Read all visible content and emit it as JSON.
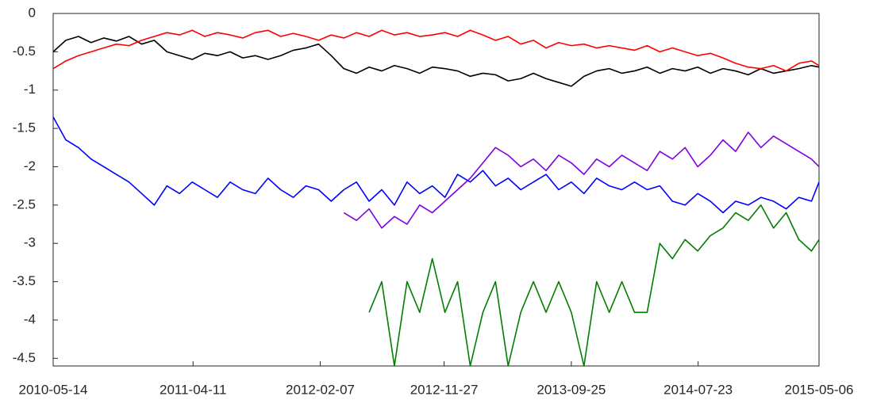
{
  "chart_data": {
    "type": "line",
    "x": [
      "2010-05-14",
      "2010-06-13",
      "2010-07-13",
      "2010-08-12",
      "2010-09-11",
      "2010-10-11",
      "2010-11-10",
      "2010-12-10",
      "2011-01-09",
      "2011-02-08",
      "2011-03-10",
      "2011-04-09",
      "2011-05-09",
      "2011-06-08",
      "2011-07-08",
      "2011-08-07",
      "2011-09-06",
      "2011-10-06",
      "2011-11-05",
      "2011-12-05",
      "2012-01-04",
      "2012-02-03",
      "2012-03-04",
      "2012-04-03",
      "2012-05-03",
      "2012-06-02",
      "2012-07-02",
      "2012-08-01",
      "2012-08-31",
      "2012-09-30",
      "2012-10-30",
      "2012-11-29",
      "2012-12-29",
      "2013-01-28",
      "2013-02-27",
      "2013-03-29",
      "2013-04-28",
      "2013-05-28",
      "2013-06-27",
      "2013-07-27",
      "2013-08-26",
      "2013-09-25",
      "2013-10-25",
      "2013-11-24",
      "2013-12-24",
      "2014-01-23",
      "2014-02-22",
      "2014-03-24",
      "2014-04-23",
      "2014-05-23",
      "2014-06-22",
      "2014-07-22",
      "2014-08-21",
      "2014-09-20",
      "2014-10-20",
      "2014-11-19",
      "2014-12-19",
      "2015-01-18",
      "2015-02-17",
      "2015-03-19",
      "2015-04-18",
      "2015-05-06"
    ],
    "series": [
      {
        "color": "#000000",
        "values": [
          -0.5,
          -0.35,
          -0.3,
          -0.38,
          -0.32,
          -0.36,
          -0.3,
          -0.4,
          -0.35,
          -0.5,
          -0.55,
          -0.6,
          -0.52,
          -0.55,
          -0.5,
          -0.58,
          -0.55,
          -0.6,
          -0.55,
          -0.48,
          -0.45,
          -0.4,
          -0.55,
          -0.72,
          -0.78,
          -0.7,
          -0.75,
          -0.68,
          -0.72,
          -0.78,
          -0.7,
          -0.72,
          -0.75,
          -0.82,
          -0.78,
          -0.8,
          -0.88,
          -0.85,
          -0.78,
          -0.85,
          -0.9,
          -0.95,
          -0.82,
          -0.75,
          -0.72,
          -0.78,
          -0.75,
          -0.7,
          -0.78,
          -0.72,
          -0.75,
          -0.7,
          -0.78,
          -0.72,
          -0.75,
          -0.8,
          -0.72,
          -0.78,
          -0.75,
          -0.72,
          -0.68,
          -0.7
        ]
      },
      {
        "color": "#ff0000",
        "values": [
          -0.72,
          -0.62,
          -0.55,
          -0.5,
          -0.45,
          -0.4,
          -0.42,
          -0.35,
          -0.3,
          -0.25,
          -0.28,
          -0.22,
          -0.3,
          -0.25,
          -0.28,
          -0.32,
          -0.25,
          -0.22,
          -0.3,
          -0.26,
          -0.3,
          -0.35,
          -0.28,
          -0.32,
          -0.25,
          -0.3,
          -0.22,
          -0.28,
          -0.25,
          -0.3,
          -0.28,
          -0.25,
          -0.3,
          -0.22,
          -0.28,
          -0.35,
          -0.3,
          -0.4,
          -0.35,
          -0.45,
          -0.38,
          -0.42,
          -0.4,
          -0.45,
          -0.42,
          -0.45,
          -0.48,
          -0.42,
          -0.5,
          -0.45,
          -0.5,
          -0.55,
          -0.52,
          -0.58,
          -0.65,
          -0.7,
          -0.72,
          -0.68,
          -0.75,
          -0.65,
          -0.62,
          -0.68
        ]
      },
      {
        "color": "#0000ff",
        "values": [
          -1.35,
          -1.65,
          -1.75,
          -1.9,
          -2.0,
          -2.1,
          -2.2,
          -2.35,
          -2.5,
          -2.25,
          -2.35,
          -2.2,
          -2.3,
          -2.4,
          -2.2,
          -2.3,
          -2.35,
          -2.15,
          -2.3,
          -2.4,
          -2.25,
          -2.3,
          -2.45,
          -2.3,
          -2.2,
          -2.45,
          -2.3,
          -2.5,
          -2.2,
          -2.35,
          -2.25,
          -2.4,
          -2.1,
          -2.2,
          -2.05,
          -2.25,
          -2.15,
          -2.3,
          -2.2,
          -2.1,
          -2.3,
          -2.2,
          -2.35,
          -2.15,
          -2.25,
          -2.3,
          -2.2,
          -2.3,
          -2.25,
          -2.45,
          -2.5,
          -2.35,
          -2.45,
          -2.6,
          -2.45,
          -2.5,
          -2.4,
          -2.45,
          -2.55,
          -2.4,
          -2.45,
          -2.2
        ]
      },
      {
        "color": "#8000e0",
        "values": [
          null,
          null,
          null,
          null,
          null,
          null,
          null,
          null,
          null,
          null,
          null,
          null,
          null,
          null,
          null,
          null,
          null,
          null,
          null,
          null,
          null,
          null,
          null,
          -2.6,
          -2.7,
          -2.55,
          -2.8,
          -2.65,
          -2.75,
          -2.5,
          -2.6,
          -2.45,
          -2.3,
          -2.15,
          -1.95,
          -1.75,
          -1.85,
          -2.0,
          -1.9,
          -2.05,
          -1.85,
          -1.95,
          -2.1,
          -1.9,
          -2.0,
          -1.85,
          -1.95,
          -2.05,
          -1.8,
          -1.9,
          -1.75,
          -2.0,
          -1.85,
          -1.65,
          -1.8,
          -1.55,
          -1.75,
          -1.6,
          -1.7,
          -1.8,
          -1.9,
          -2.0
        ]
      },
      {
        "color": "#007f00",
        "values": [
          null,
          null,
          null,
          null,
          null,
          null,
          null,
          null,
          null,
          null,
          null,
          null,
          null,
          null,
          null,
          null,
          null,
          null,
          null,
          null,
          null,
          null,
          null,
          null,
          null,
          -3.9,
          -3.5,
          -4.6,
          -3.5,
          -3.9,
          -3.2,
          -3.9,
          -3.5,
          -4.6,
          -3.9,
          -3.5,
          -4.6,
          -3.9,
          -3.5,
          -3.9,
          -3.5,
          -3.9,
          -4.6,
          -3.5,
          -3.9,
          -3.5,
          -3.9,
          -3.9,
          -3.0,
          -3.2,
          -2.95,
          -3.1,
          -2.9,
          -2.8,
          -2.6,
          -2.7,
          -2.5,
          -2.8,
          -2.6,
          -2.95,
          -3.1,
          -2.95
        ]
      }
    ],
    "xlim": [
      "2010-05-14",
      "2015-05-06"
    ],
    "xticks": [
      "2010-05-14",
      "2011-04-11",
      "2012-02-07",
      "2012-11-27",
      "2013-09-25",
      "2014-07-23",
      "2015-05-06"
    ],
    "ylim": [
      -4.6,
      0
    ],
    "yticks": [
      0,
      -0.5,
      -1,
      -1.5,
      -2,
      -2.5,
      -3,
      -3.5,
      -4,
      -4.5
    ]
  }
}
